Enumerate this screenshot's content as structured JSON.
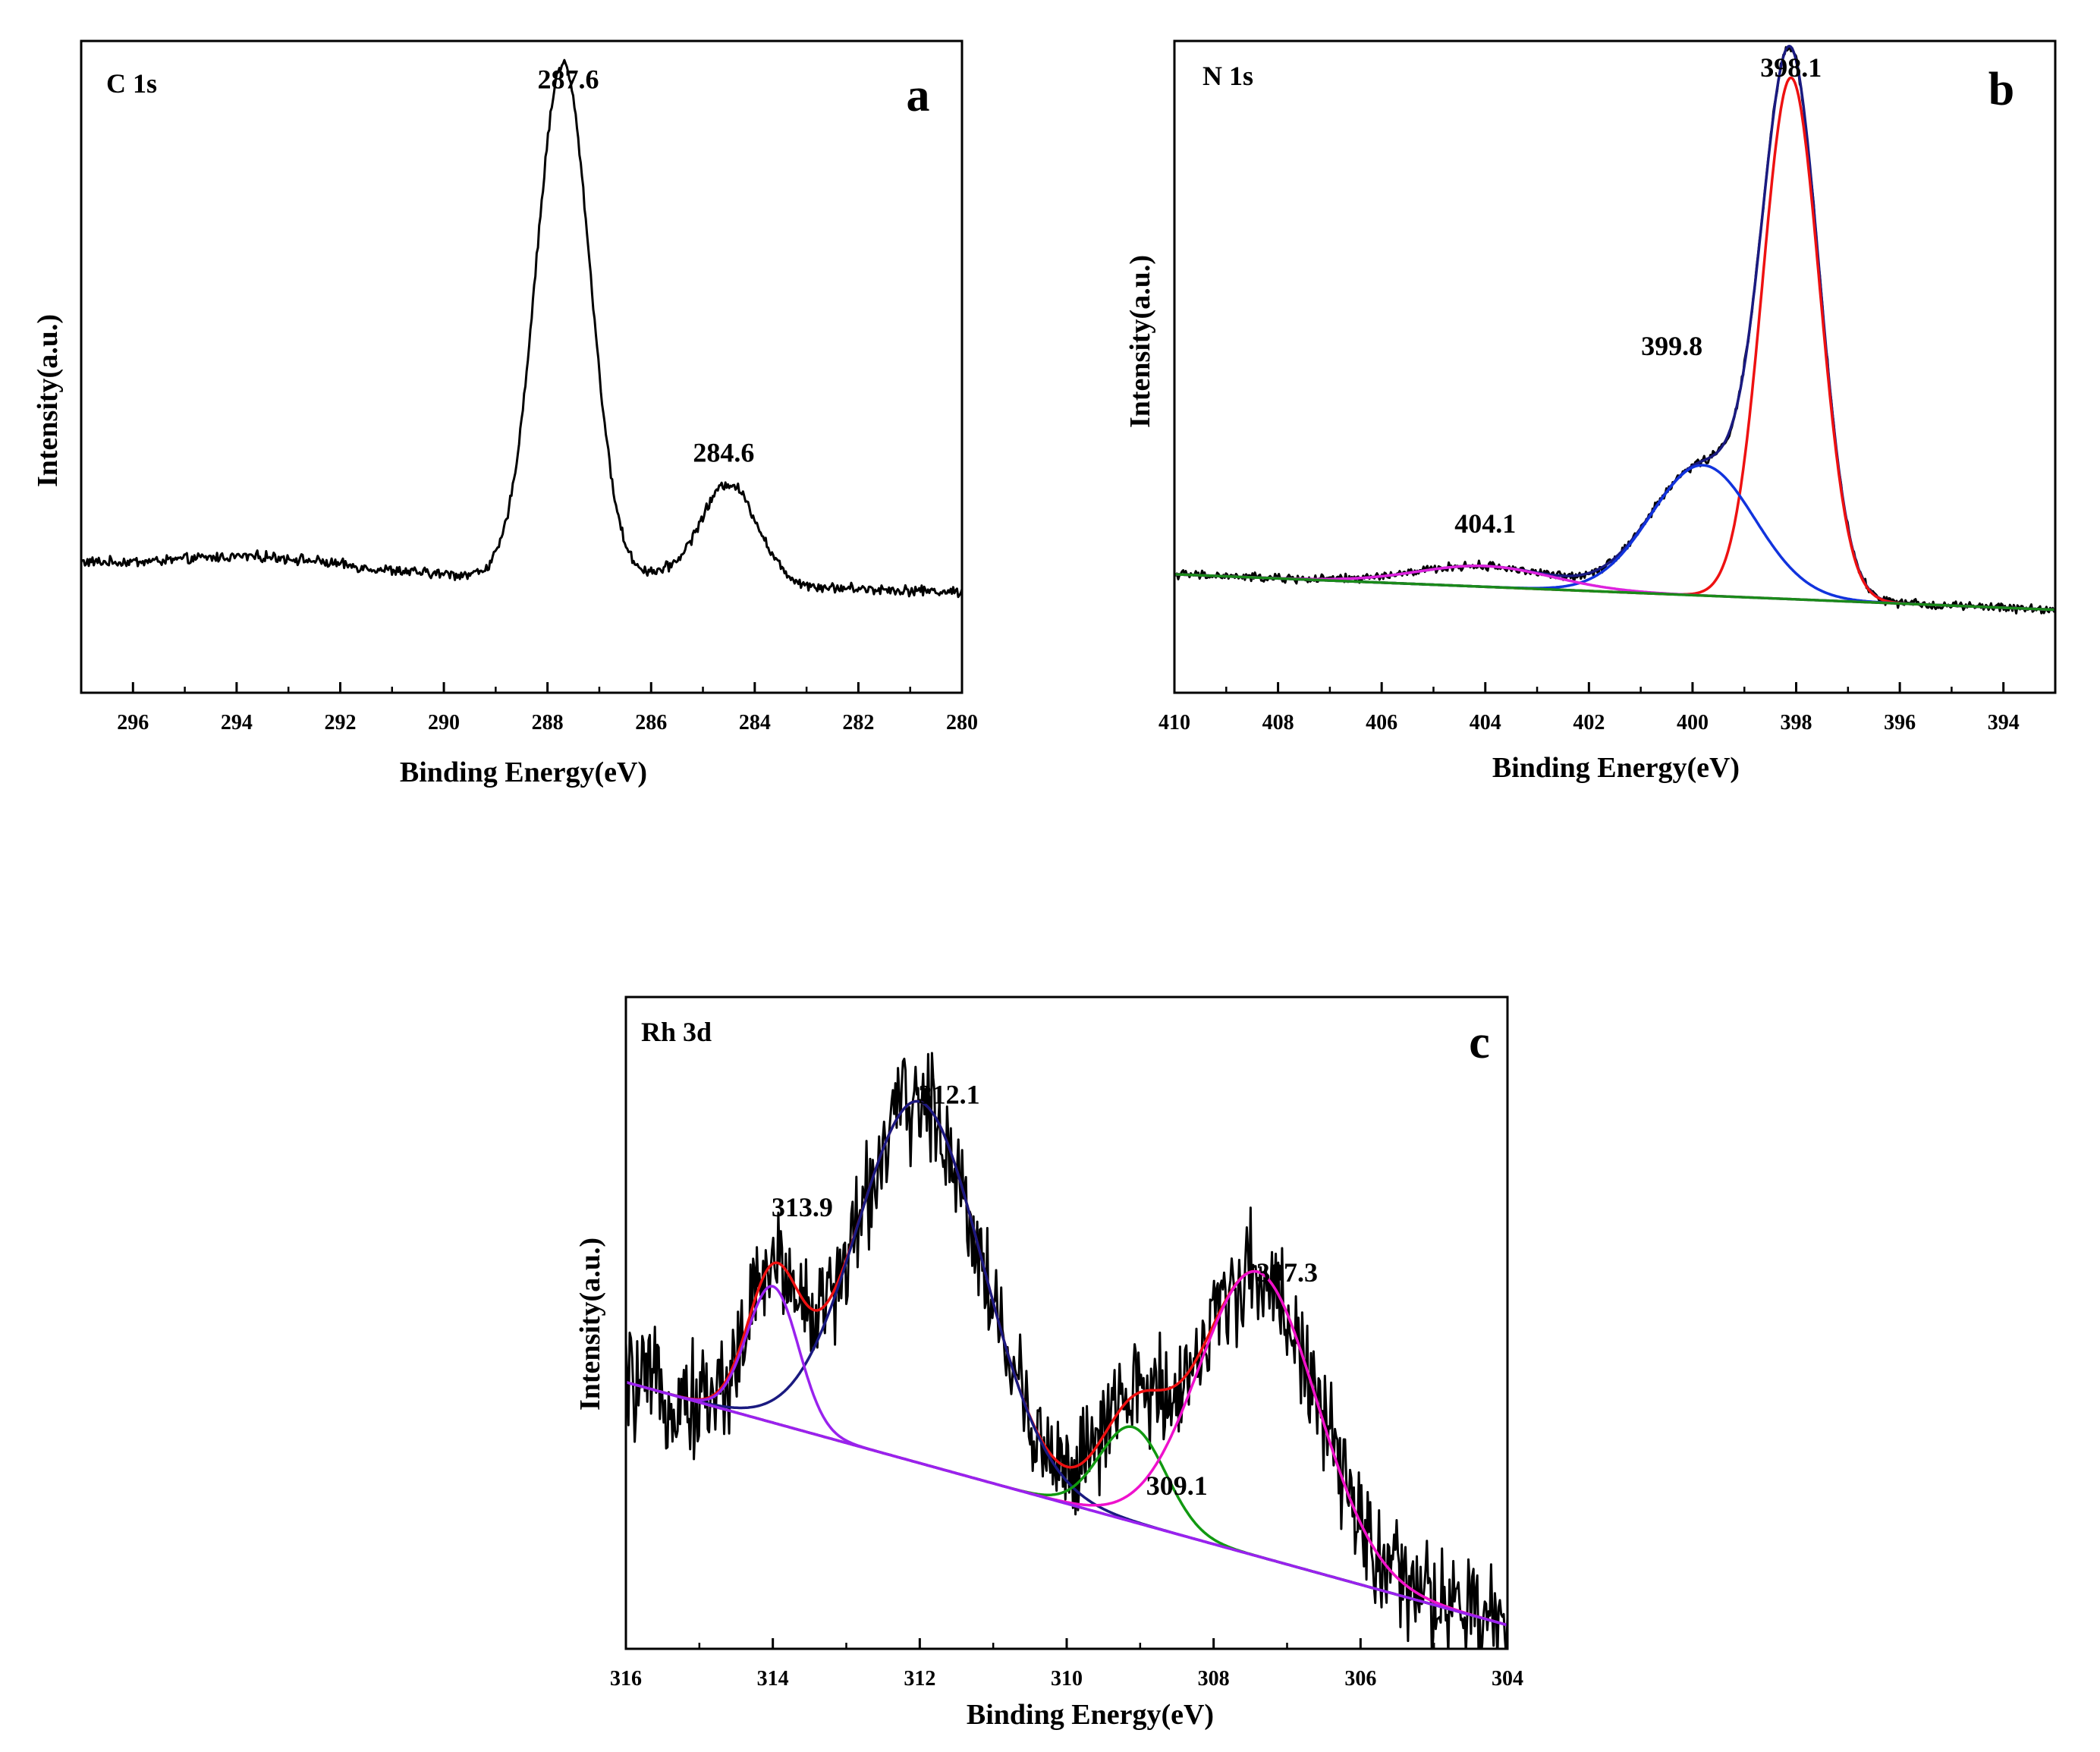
{
  "chart_data": [
    {
      "type": "line",
      "panel_letter": "a",
      "title": "C 1s",
      "xlabel": "Binding Energy(eV)",
      "ylabel": "Intensity(a.u.)",
      "xlim": [
        297,
        280
      ],
      "ylim": [
        0,
        1.1
      ],
      "x_ticks": [
        296,
        294,
        292,
        290,
        288,
        286,
        284,
        282,
        280
      ],
      "background": {
        "points": [
          [
            297,
            0.22
          ],
          [
            280,
            0.17
          ]
        ]
      },
      "series": [
        {
          "name": "C 1s spectrum",
          "color": "#000000",
          "noise": 0.007,
          "components": [
            {
              "center": 287.7,
              "amp": 0.87,
              "width": 0.52
            },
            {
              "center": 284.5,
              "amp": 0.17,
              "width": 0.55
            },
            {
              "center": 293.5,
              "amp": 0.02,
              "width": 1.4
            },
            {
              "center": 285.9,
              "amp": 0.01,
              "width": 0.4
            }
          ]
        }
      ],
      "annotations": [
        {
          "text": "287.6",
          "x": 287.6,
          "y": 1.02
        },
        {
          "text": "284.6",
          "x": 284.6,
          "y": 0.39
        }
      ]
    },
    {
      "type": "line",
      "panel_letter": "b",
      "title": "N 1s",
      "xlabel": "Binding Energy(eV)",
      "ylabel": "Intensity(a.u.)",
      "xlim": [
        410,
        393
      ],
      "ylim": [
        0,
        1.1
      ],
      "x_ticks": [
        410,
        408,
        406,
        404,
        402,
        400,
        398,
        396,
        394
      ],
      "background": {
        "points": [
          [
            410,
            0.2
          ],
          [
            393,
            0.14
          ]
        ]
      },
      "series": [
        {
          "name": "Raw spectrum",
          "color": "#000000",
          "noise": 0.006,
          "envelope": true
        },
        {
          "name": "Fit envelope",
          "color": "#1a1a80",
          "envelope": true
        },
        {
          "name": "398.1 component",
          "color": "#ee1111",
          "components": [
            {
              "center": 398.1,
              "amp": 0.88,
              "width": 0.55
            }
          ]
        },
        {
          "name": "399.8 component",
          "color": "#1133dd",
          "components": [
            {
              "center": 399.8,
              "amp": 0.22,
              "width": 1.0
            }
          ]
        },
        {
          "name": "404.1 component",
          "color": "#dd22dd",
          "components": [
            {
              "center": 404.0,
              "amp": 0.035,
              "width": 1.3
            }
          ]
        },
        {
          "name": "Background",
          "color": "#1a8a1a",
          "baseline_only": true
        }
      ],
      "annotations": [
        {
          "text": "398.1",
          "x": 398.1,
          "y": 1.04
        },
        {
          "text": "399.8",
          "x": 400.4,
          "y": 0.57
        },
        {
          "text": "404.1",
          "x": 404.0,
          "y": 0.27
        }
      ]
    },
    {
      "type": "line",
      "panel_letter": "c",
      "title": "Rh 3d",
      "xlabel": "Binding Energy(eV)",
      "ylabel": "Intensity(a.u.)",
      "xlim": [
        316,
        304
      ],
      "ylim": [
        0,
        1.1
      ],
      "x_ticks": [
        316,
        314,
        312,
        310,
        308,
        306,
        304
      ],
      "background": {
        "points": [
          [
            316,
            0.45
          ],
          [
            304,
            0.04
          ]
        ]
      },
      "series": [
        {
          "name": "Raw spectrum",
          "color": "#000000",
          "noise": 0.075,
          "envelope": true
        },
        {
          "name": "Fit envelope",
          "color": "#ee1111",
          "envelope": true
        },
        {
          "name": "312.1 component",
          "color": "#1a1a80",
          "components": [
            {
              "center": 312.0,
              "amp": 0.61,
              "width": 0.85
            }
          ]
        },
        {
          "name": "313.9 component",
          "color": "#9922ee",
          "components": [
            {
              "center": 314.0,
              "amp": 0.23,
              "width": 0.35
            }
          ]
        },
        {
          "name": "309.1 component",
          "color": "#119911",
          "components": [
            {
              "center": 309.1,
              "amp": 0.16,
              "width": 0.45
            }
          ]
        },
        {
          "name": "307.3 component",
          "color": "#ee11cc",
          "components": [
            {
              "center": 307.4,
              "amp": 0.48,
              "width": 0.8
            }
          ]
        },
        {
          "name": "Background",
          "color": "#9922ee",
          "baseline_only": true
        }
      ],
      "annotations": [
        {
          "text": "313.9",
          "x": 313.6,
          "y": 0.73
        },
        {
          "text": "312.1",
          "x": 311.6,
          "y": 0.92
        },
        {
          "text": "309.1",
          "x": 308.5,
          "y": 0.26
        },
        {
          "text": "307.3",
          "x": 307.0,
          "y": 0.62
        }
      ]
    }
  ]
}
